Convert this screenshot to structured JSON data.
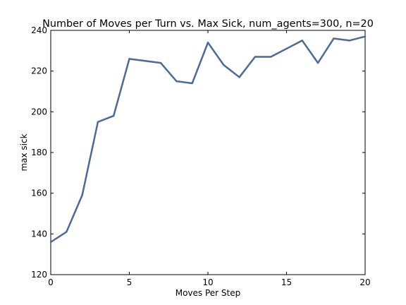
{
  "chart_data": {
    "type": "line",
    "title": "Number of Moves per Turn vs. Max Sick, num_agents=300, n=20",
    "xlabel": "Moves Per Step",
    "ylabel": "max sick",
    "xlim": [
      0,
      20
    ],
    "ylim": [
      120,
      240
    ],
    "xticks": [
      0,
      5,
      10,
      15,
      20
    ],
    "yticks": [
      120,
      140,
      160,
      180,
      200,
      220,
      240
    ],
    "grid": false,
    "series": [
      {
        "color": "#4c6a96",
        "x": [
          0,
          1,
          2,
          3,
          4,
          5,
          6,
          7,
          8,
          9,
          10,
          11,
          12,
          13,
          14,
          15,
          16,
          17,
          18,
          19,
          20
        ],
        "values": [
          136,
          141,
          159,
          195,
          198,
          226,
          225,
          224,
          215,
          214,
          234,
          223,
          217,
          227,
          227,
          231,
          235,
          224,
          236,
          235,
          237
        ]
      }
    ]
  }
}
